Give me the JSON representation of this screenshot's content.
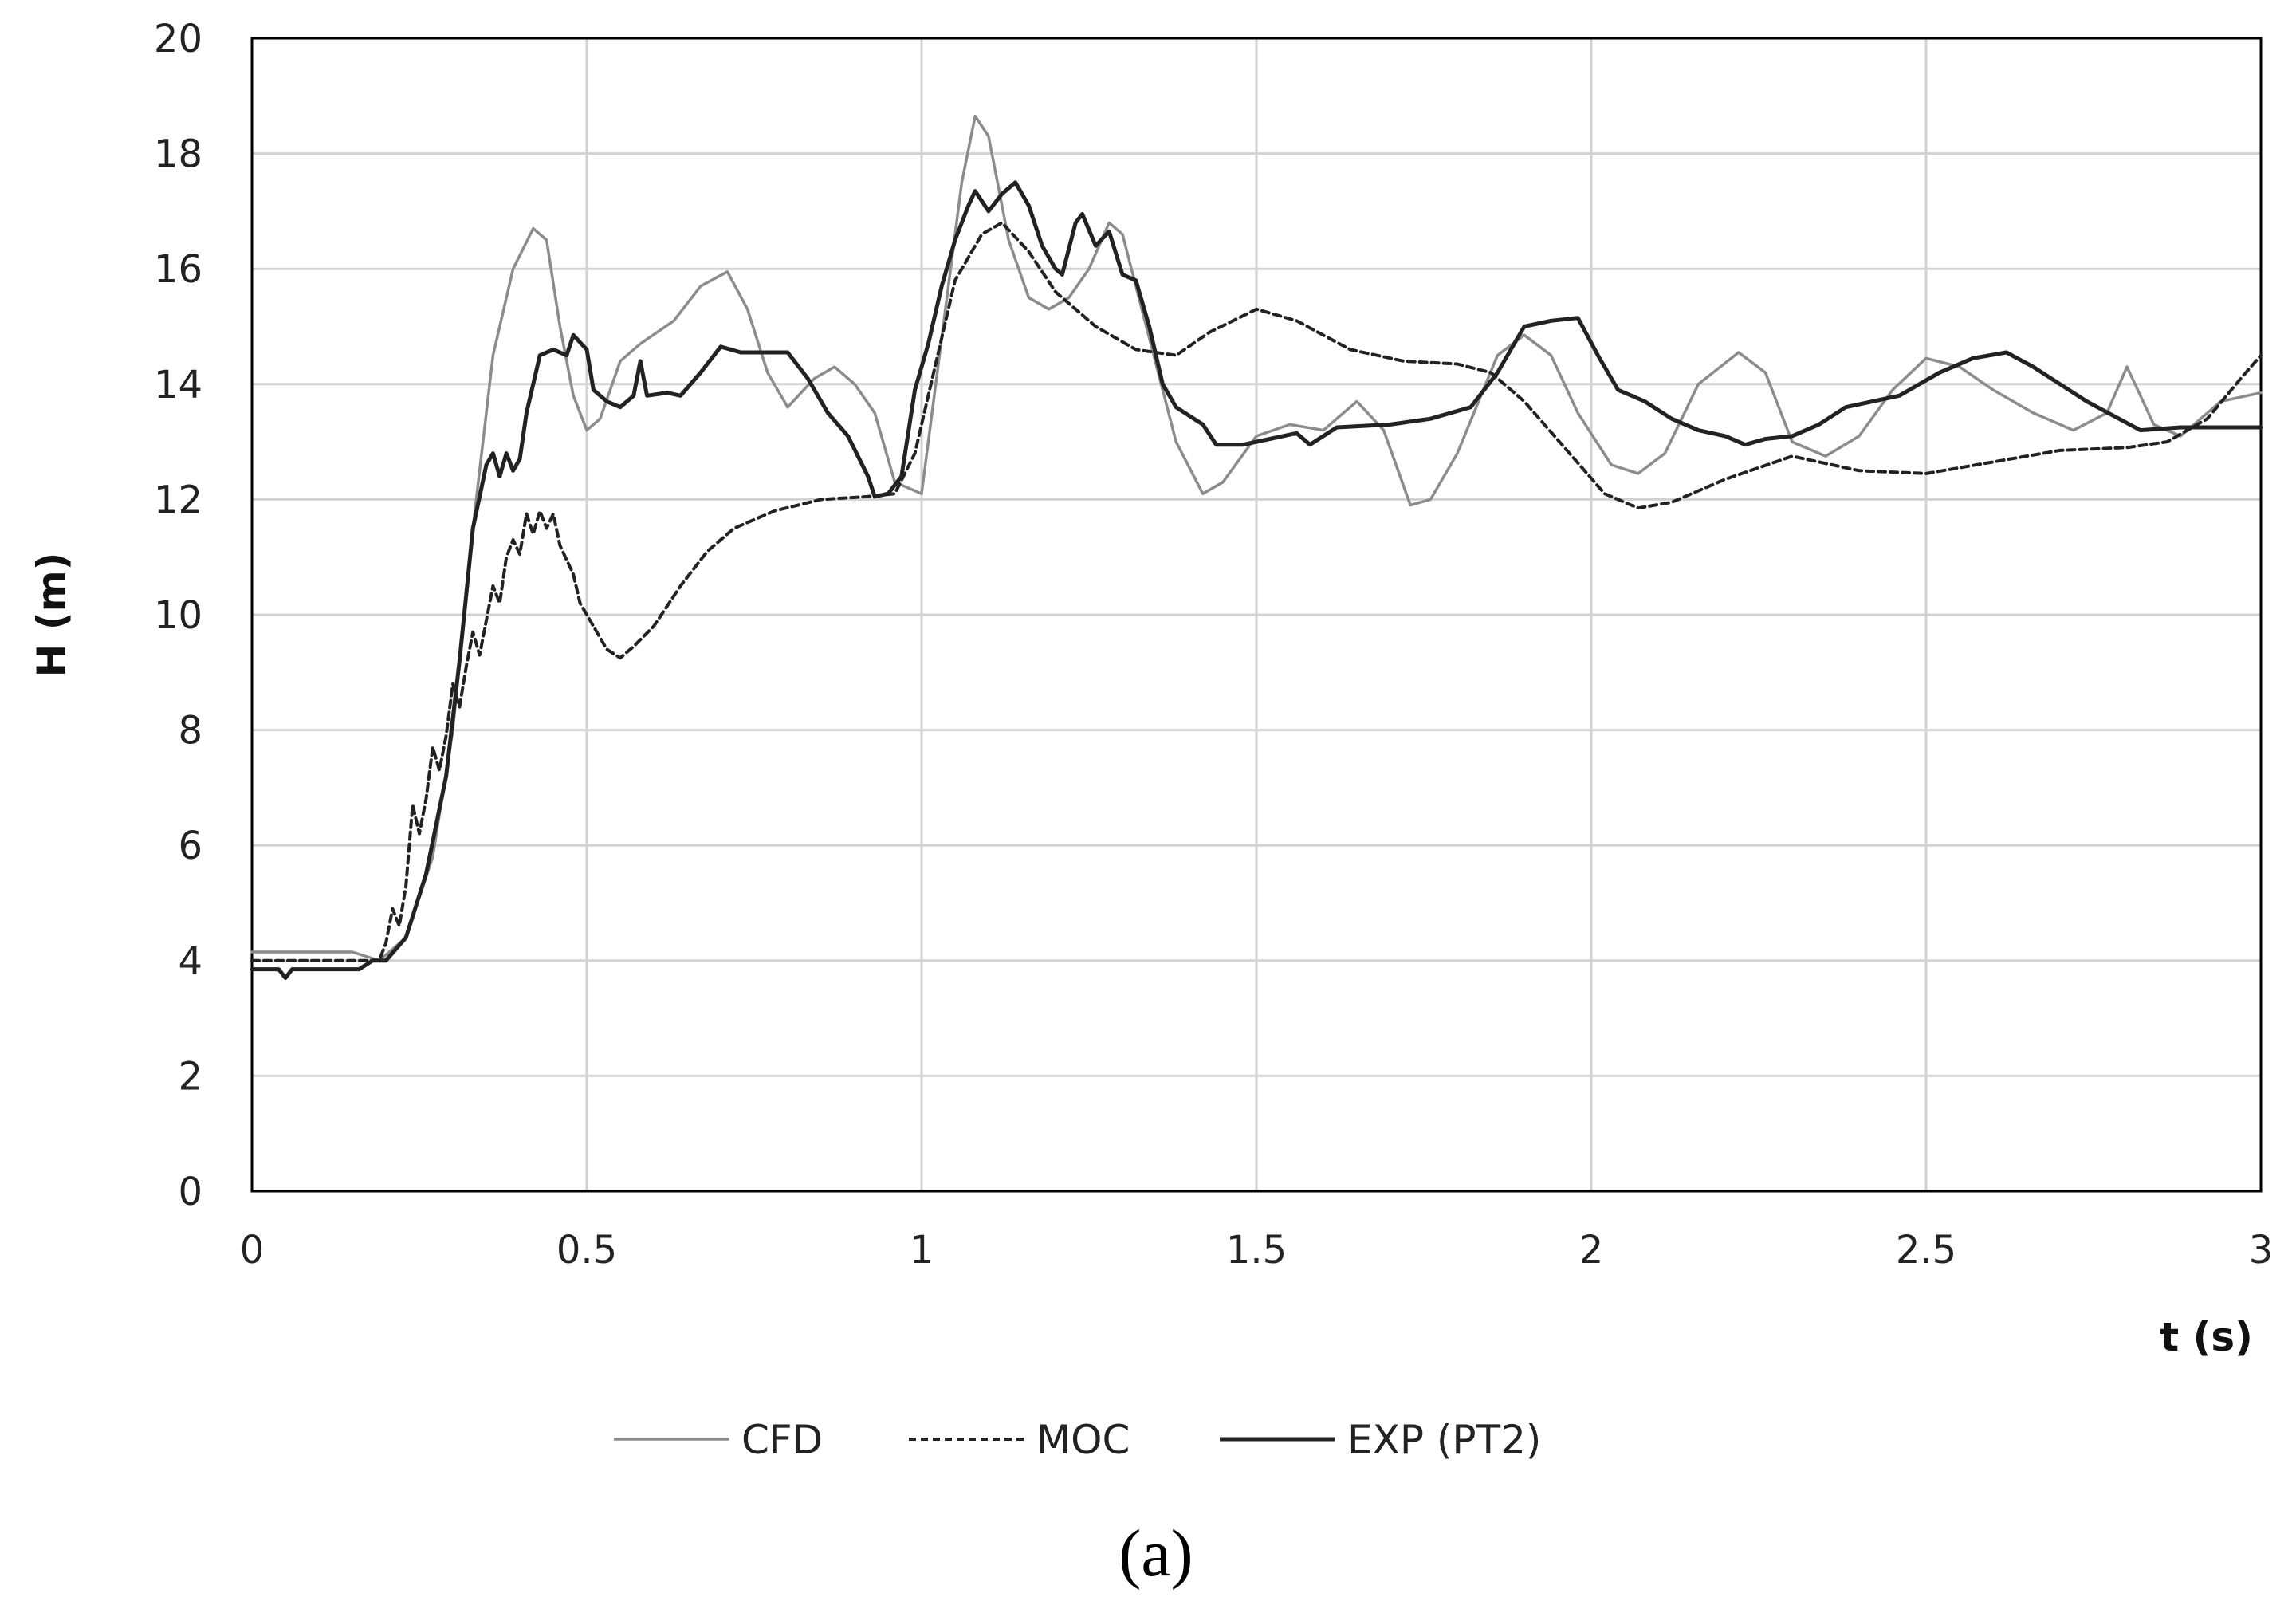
{
  "chart_data": {
    "type": "line",
    "title": "",
    "xlabel": "t (s)",
    "ylabel": "H (m)",
    "xlim": [
      0,
      3
    ],
    "ylim": [
      0,
      20
    ],
    "xticks": [
      "0",
      "0.5",
      "1",
      "1.5",
      "2",
      "2.5",
      "3"
    ],
    "yticks": [
      "0",
      "2",
      "4",
      "6",
      "8",
      "10",
      "12",
      "14",
      "16",
      "18",
      "20"
    ],
    "grid": true,
    "legend_position": "bottom",
    "caption": "(a)",
    "series": [
      {
        "name": "CFD",
        "color": "#8c8c8c",
        "style": "solid",
        "points": [
          [
            0,
            4.15
          ],
          [
            0.15,
            4.15
          ],
          [
            0.19,
            4.0
          ],
          [
            0.23,
            4.4
          ],
          [
            0.27,
            5.8
          ],
          [
            0.3,
            8.0
          ],
          [
            0.33,
            11.5
          ],
          [
            0.36,
            14.5
          ],
          [
            0.39,
            16.0
          ],
          [
            0.42,
            16.7
          ],
          [
            0.44,
            16.5
          ],
          [
            0.46,
            15.0
          ],
          [
            0.48,
            13.8
          ],
          [
            0.5,
            13.2
          ],
          [
            0.52,
            13.4
          ],
          [
            0.55,
            14.4
          ],
          [
            0.58,
            14.7
          ],
          [
            0.63,
            15.1
          ],
          [
            0.67,
            15.7
          ],
          [
            0.71,
            15.95
          ],
          [
            0.74,
            15.3
          ],
          [
            0.77,
            14.2
          ],
          [
            0.8,
            13.6
          ],
          [
            0.84,
            14.1
          ],
          [
            0.87,
            14.3
          ],
          [
            0.9,
            14.0
          ],
          [
            0.93,
            13.5
          ],
          [
            0.96,
            12.3
          ],
          [
            1.0,
            12.1
          ],
          [
            1.03,
            14.8
          ],
          [
            1.06,
            17.5
          ],
          [
            1.08,
            18.65
          ],
          [
            1.1,
            18.3
          ],
          [
            1.13,
            16.5
          ],
          [
            1.16,
            15.5
          ],
          [
            1.19,
            15.3
          ],
          [
            1.22,
            15.5
          ],
          [
            1.25,
            16.0
          ],
          [
            1.28,
            16.8
          ],
          [
            1.3,
            16.6
          ],
          [
            1.34,
            14.8
          ],
          [
            1.38,
            13.0
          ],
          [
            1.42,
            12.1
          ],
          [
            1.45,
            12.3
          ],
          [
            1.5,
            13.1
          ],
          [
            1.55,
            13.3
          ],
          [
            1.6,
            13.2
          ],
          [
            1.65,
            13.7
          ],
          [
            1.69,
            13.2
          ],
          [
            1.73,
            11.9
          ],
          [
            1.76,
            12.0
          ],
          [
            1.8,
            12.8
          ],
          [
            1.86,
            14.5
          ],
          [
            1.9,
            14.85
          ],
          [
            1.94,
            14.5
          ],
          [
            1.98,
            13.5
          ],
          [
            2.03,
            12.6
          ],
          [
            2.07,
            12.45
          ],
          [
            2.11,
            12.8
          ],
          [
            2.16,
            14.0
          ],
          [
            2.22,
            14.55
          ],
          [
            2.26,
            14.2
          ],
          [
            2.3,
            13.0
          ],
          [
            2.35,
            12.75
          ],
          [
            2.4,
            13.1
          ],
          [
            2.45,
            13.9
          ],
          [
            2.5,
            14.45
          ],
          [
            2.55,
            14.3
          ],
          [
            2.6,
            13.9
          ],
          [
            2.66,
            13.5
          ],
          [
            2.72,
            13.2
          ],
          [
            2.77,
            13.5
          ],
          [
            2.8,
            14.3
          ],
          [
            2.84,
            13.3
          ],
          [
            2.88,
            13.1
          ],
          [
            2.94,
            13.7
          ],
          [
            3.0,
            13.85
          ]
        ]
      },
      {
        "name": "MOC",
        "color": "#222222",
        "style": "dashed",
        "points": [
          [
            0,
            4.0
          ],
          [
            0.19,
            4.0
          ],
          [
            0.2,
            4.3
          ],
          [
            0.21,
            4.9
          ],
          [
            0.22,
            4.6
          ],
          [
            0.23,
            5.3
          ],
          [
            0.24,
            6.7
          ],
          [
            0.25,
            6.2
          ],
          [
            0.26,
            6.8
          ],
          [
            0.27,
            7.7
          ],
          [
            0.28,
            7.3
          ],
          [
            0.29,
            7.9
          ],
          [
            0.3,
            8.8
          ],
          [
            0.31,
            8.4
          ],
          [
            0.32,
            9.1
          ],
          [
            0.33,
            9.7
          ],
          [
            0.34,
            9.3
          ],
          [
            0.35,
            9.9
          ],
          [
            0.36,
            10.5
          ],
          [
            0.37,
            10.2
          ],
          [
            0.38,
            11.0
          ],
          [
            0.39,
            11.3
          ],
          [
            0.4,
            11.05
          ],
          [
            0.41,
            11.75
          ],
          [
            0.42,
            11.4
          ],
          [
            0.43,
            11.8
          ],
          [
            0.44,
            11.5
          ],
          [
            0.45,
            11.75
          ],
          [
            0.46,
            11.2
          ],
          [
            0.48,
            10.7
          ],
          [
            0.49,
            10.2
          ],
          [
            0.51,
            9.8
          ],
          [
            0.53,
            9.4
          ],
          [
            0.55,
            9.25
          ],
          [
            0.57,
            9.45
          ],
          [
            0.6,
            9.8
          ],
          [
            0.64,
            10.5
          ],
          [
            0.68,
            11.1
          ],
          [
            0.72,
            11.5
          ],
          [
            0.78,
            11.8
          ],
          [
            0.85,
            12.0
          ],
          [
            0.92,
            12.05
          ],
          [
            0.96,
            12.1
          ],
          [
            0.99,
            12.8
          ],
          [
            1.02,
            14.3
          ],
          [
            1.05,
            15.8
          ],
          [
            1.09,
            16.6
          ],
          [
            1.12,
            16.8
          ],
          [
            1.16,
            16.3
          ],
          [
            1.2,
            15.6
          ],
          [
            1.26,
            15.0
          ],
          [
            1.32,
            14.6
          ],
          [
            1.38,
            14.5
          ],
          [
            1.43,
            14.9
          ],
          [
            1.5,
            15.3
          ],
          [
            1.56,
            15.1
          ],
          [
            1.64,
            14.6
          ],
          [
            1.72,
            14.4
          ],
          [
            1.8,
            14.35
          ],
          [
            1.85,
            14.2
          ],
          [
            1.9,
            13.7
          ],
          [
            1.96,
            12.9
          ],
          [
            2.02,
            12.1
          ],
          [
            2.07,
            11.85
          ],
          [
            2.12,
            11.95
          ],
          [
            2.2,
            12.35
          ],
          [
            2.3,
            12.75
          ],
          [
            2.4,
            12.5
          ],
          [
            2.5,
            12.45
          ],
          [
            2.6,
            12.65
          ],
          [
            2.7,
            12.85
          ],
          [
            2.8,
            12.9
          ],
          [
            2.86,
            13.0
          ],
          [
            2.92,
            13.4
          ],
          [
            2.97,
            14.1
          ],
          [
            3.0,
            14.5
          ]
        ]
      },
      {
        "name": "EXP (PT2)",
        "color": "#222222",
        "style": "solid",
        "points": [
          [
            0,
            3.85
          ],
          [
            0.04,
            3.85
          ],
          [
            0.05,
            3.7
          ],
          [
            0.06,
            3.85
          ],
          [
            0.16,
            3.85
          ],
          [
            0.18,
            4.0
          ],
          [
            0.2,
            4.0
          ],
          [
            0.23,
            4.4
          ],
          [
            0.26,
            5.5
          ],
          [
            0.29,
            7.2
          ],
          [
            0.31,
            9.2
          ],
          [
            0.33,
            11.5
          ],
          [
            0.35,
            12.6
          ],
          [
            0.36,
            12.8
          ],
          [
            0.37,
            12.4
          ],
          [
            0.38,
            12.8
          ],
          [
            0.39,
            12.5
          ],
          [
            0.4,
            12.7
          ],
          [
            0.41,
            13.5
          ],
          [
            0.43,
            14.5
          ],
          [
            0.45,
            14.6
          ],
          [
            0.47,
            14.5
          ],
          [
            0.48,
            14.85
          ],
          [
            0.5,
            14.6
          ],
          [
            0.51,
            13.9
          ],
          [
            0.53,
            13.7
          ],
          [
            0.55,
            13.6
          ],
          [
            0.57,
            13.8
          ],
          [
            0.58,
            14.4
          ],
          [
            0.59,
            13.8
          ],
          [
            0.62,
            13.85
          ],
          [
            0.64,
            13.8
          ],
          [
            0.67,
            14.2
          ],
          [
            0.7,
            14.65
          ],
          [
            0.73,
            14.55
          ],
          [
            0.8,
            14.55
          ],
          [
            0.83,
            14.1
          ],
          [
            0.86,
            13.5
          ],
          [
            0.89,
            13.1
          ],
          [
            0.92,
            12.4
          ],
          [
            0.93,
            12.05
          ],
          [
            0.95,
            12.1
          ],
          [
            0.97,
            12.4
          ],
          [
            0.99,
            13.9
          ],
          [
            1.01,
            14.7
          ],
          [
            1.03,
            15.7
          ],
          [
            1.05,
            16.5
          ],
          [
            1.07,
            17.1
          ],
          [
            1.08,
            17.35
          ],
          [
            1.1,
            17.0
          ],
          [
            1.12,
            17.3
          ],
          [
            1.14,
            17.5
          ],
          [
            1.16,
            17.1
          ],
          [
            1.18,
            16.4
          ],
          [
            1.2,
            16.0
          ],
          [
            1.21,
            15.9
          ],
          [
            1.23,
            16.8
          ],
          [
            1.24,
            16.95
          ],
          [
            1.26,
            16.4
          ],
          [
            1.28,
            16.65
          ],
          [
            1.3,
            15.9
          ],
          [
            1.32,
            15.8
          ],
          [
            1.34,
            15.0
          ],
          [
            1.36,
            14.0
          ],
          [
            1.38,
            13.6
          ],
          [
            1.4,
            13.45
          ],
          [
            1.42,
            13.3
          ],
          [
            1.44,
            12.95
          ],
          [
            1.48,
            12.95
          ],
          [
            1.52,
            13.05
          ],
          [
            1.56,
            13.15
          ],
          [
            1.58,
            12.95
          ],
          [
            1.62,
            13.25
          ],
          [
            1.7,
            13.3
          ],
          [
            1.76,
            13.4
          ],
          [
            1.82,
            13.6
          ],
          [
            1.86,
            14.2
          ],
          [
            1.9,
            15.0
          ],
          [
            1.94,
            15.1
          ],
          [
            1.98,
            15.15
          ],
          [
            2.01,
            14.5
          ],
          [
            2.04,
            13.9
          ],
          [
            2.08,
            13.7
          ],
          [
            2.12,
            13.4
          ],
          [
            2.16,
            13.2
          ],
          [
            2.2,
            13.1
          ],
          [
            2.23,
            12.95
          ],
          [
            2.26,
            13.05
          ],
          [
            2.3,
            13.1
          ],
          [
            2.34,
            13.3
          ],
          [
            2.38,
            13.6
          ],
          [
            2.42,
            13.7
          ],
          [
            2.46,
            13.8
          ],
          [
            2.52,
            14.2
          ],
          [
            2.57,
            14.45
          ],
          [
            2.62,
            14.55
          ],
          [
            2.66,
            14.3
          ],
          [
            2.7,
            14.0
          ],
          [
            2.74,
            13.7
          ],
          [
            2.78,
            13.45
          ],
          [
            2.82,
            13.2
          ],
          [
            2.88,
            13.25
          ],
          [
            2.94,
            13.25
          ],
          [
            3.0,
            13.25
          ]
        ]
      }
    ]
  }
}
